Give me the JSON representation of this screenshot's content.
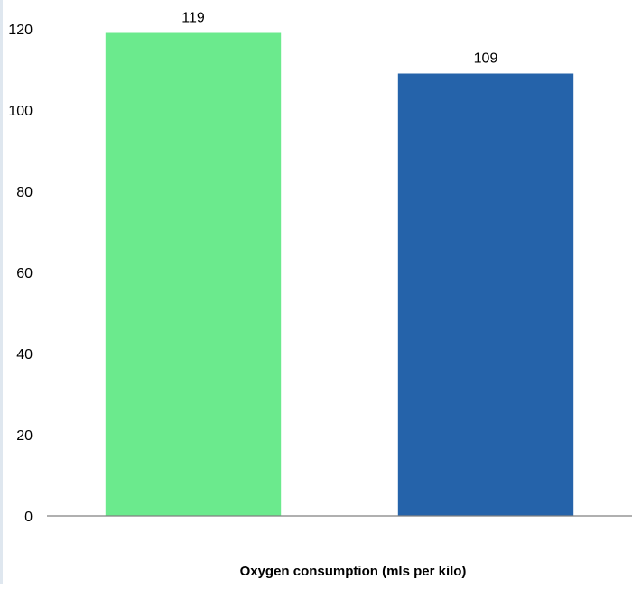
{
  "chart_data": {
    "type": "bar",
    "categories": [
      "",
      ""
    ],
    "values": [
      119,
      109
    ],
    "colors": [
      "#6bea8d",
      "#2563aa"
    ],
    "data_labels": [
      "119",
      "109"
    ],
    "xlabel": "Oxygen consumption (mls per kilo)",
    "ylabel": "",
    "ylim": [
      0,
      120
    ],
    "yticks": [
      0,
      20,
      40,
      60,
      80,
      100,
      120
    ],
    "ytick_labels": [
      "0",
      "20",
      "40",
      "60",
      "80",
      "100",
      "120"
    ],
    "grid": false,
    "legend": "none"
  }
}
